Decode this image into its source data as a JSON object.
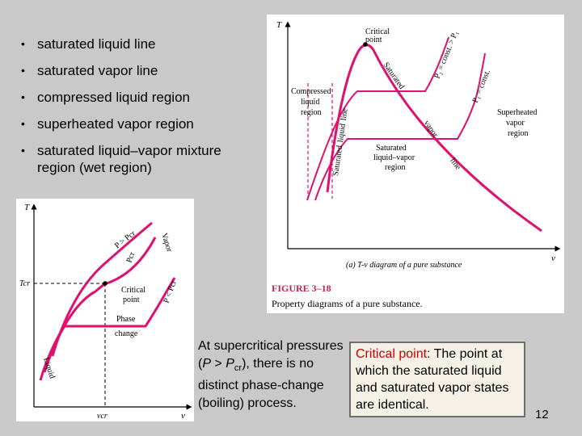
{
  "bullets": [
    "saturated liquid line",
    "saturated vapor line",
    "compressed liquid region",
    "superheated vapor region",
    "saturated liquid–vapor mixture region (wet region)"
  ],
  "figure_right": {
    "axis_t": "T",
    "axis_v": "v",
    "critical_point": [
      "Critical",
      "point"
    ],
    "p2_label": "P₂ = const. > P₁",
    "p1_label": "P₁ = const.",
    "saturated_liquid_line": [
      "Saturated",
      "liquid",
      "line"
    ],
    "saturated_vapor_line": [
      "Saturated",
      "vapor",
      "line"
    ],
    "compressed_region": [
      "Compressed",
      "liquid",
      "region"
    ],
    "superheated_region": [
      "Superheated",
      "vapor",
      "region"
    ],
    "mixture_region": [
      "Saturated",
      "liquid–vapor",
      "region"
    ],
    "subcaption": "(a) T-v diagram of a pure substance",
    "figure_number": "FIGURE 3–18",
    "figure_title": "Property diagrams of a pure substance."
  },
  "figure_left": {
    "axis_t": "T",
    "axis_v": "v",
    "t_cr": "Tcr",
    "v_cr": "vcr",
    "p_gt": "P > Pcr",
    "p_cr": "Pcr",
    "p_lt": "P < Pcr",
    "vapor": "Vapor",
    "liquid": "Liquid",
    "critical_point": [
      "Critical",
      "point"
    ],
    "phase_change": [
      "Phase",
      "change"
    ]
  },
  "supercritical": {
    "part1": "At supercritical pressures (",
    "p": "P",
    "gt": " > ",
    "pcr": "P",
    "cr": "cr",
    "part2": "), there is no distinct phase-change (boiling) process."
  },
  "critical_box": {
    "term": "Critical point",
    "definition": ": The point at which the saturated liquid and saturated vapor states are identical."
  },
  "page_number": "12",
  "colors": {
    "accent": "#e0106e",
    "highlight": "#cc0000",
    "figure_red": "#c0254b"
  }
}
